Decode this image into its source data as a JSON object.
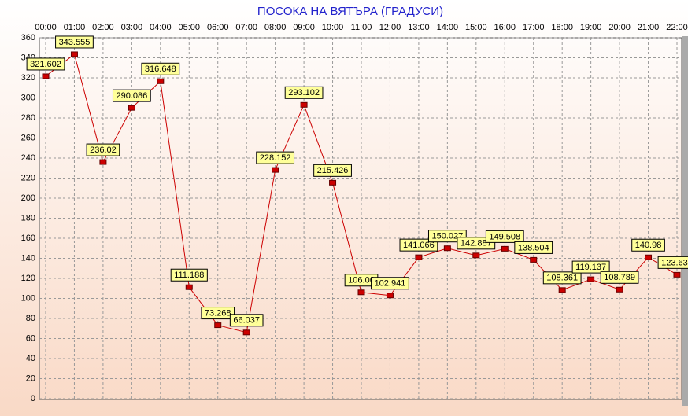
{
  "chart_data": {
    "type": "line",
    "title": "ПОСОКА НА ВЯТЪРА    (ГРАДУСИ)",
    "categories": [
      "00:00",
      "01:00",
      "02:00",
      "03:00",
      "04:00",
      "05:00",
      "06:00",
      "07:00",
      "08:00",
      "09:00",
      "10:00",
      "11:00",
      "12:00",
      "13:00",
      "14:00",
      "15:00",
      "16:00",
      "17:00",
      "18:00",
      "19:00",
      "20:00",
      "21:00",
      "22:00"
    ],
    "values": [
      321.602,
      343.555,
      236.02,
      290.086,
      316.648,
      111.188,
      73.268,
      66.037,
      228.152,
      293.102,
      215.426,
      106.06,
      102.941,
      141.066,
      150.027,
      142.887,
      149.508,
      138.504,
      108.361,
      119.137,
      108.789,
      140.98,
      123.637
    ],
    "color": "#cc0000",
    "ylim": [
      0,
      360
    ],
    "yticks": [
      0,
      20,
      40,
      60,
      80,
      100,
      120,
      140,
      160,
      180,
      200,
      220,
      240,
      260,
      280,
      300,
      320,
      340,
      360
    ],
    "grid": true
  }
}
